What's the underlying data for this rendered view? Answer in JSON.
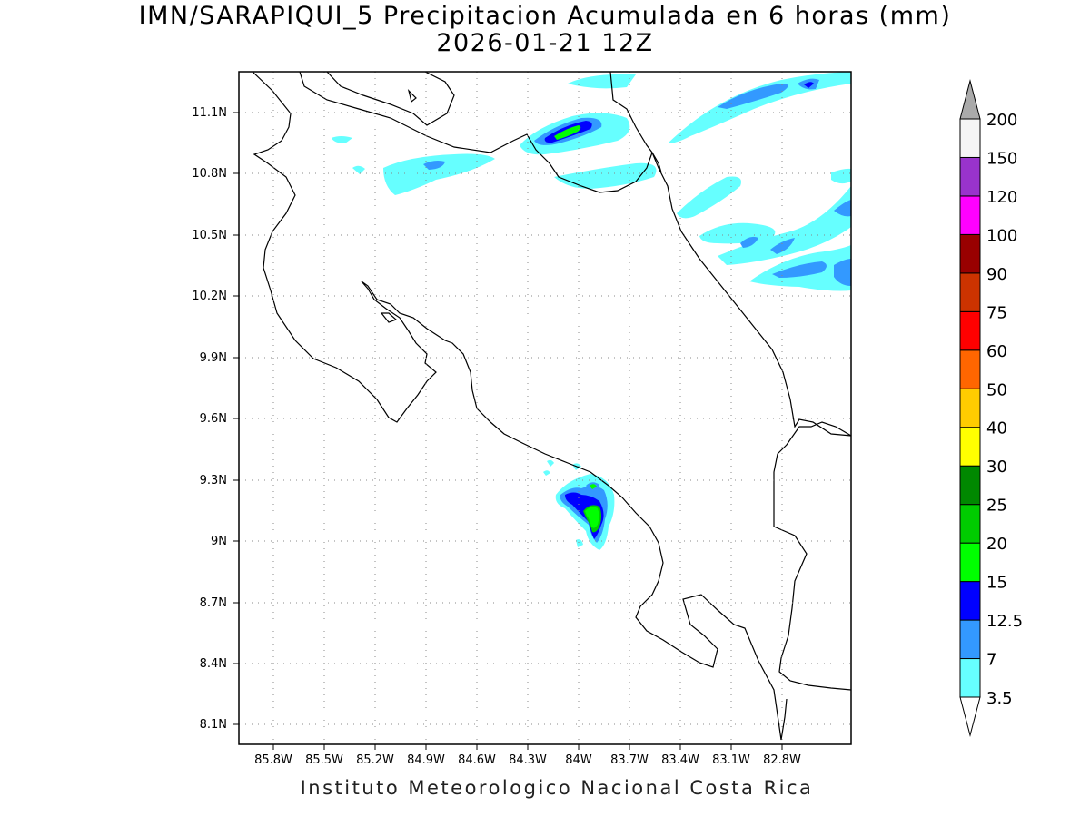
{
  "title": "IMN/SARAPIQUI_5 Precipitacion Acumulada en 6 horas (mm)",
  "subtitle": "2026-01-21 12Z",
  "credit": "Instituto Meteorologico Nacional Costa Rica",
  "map": {
    "lon_range": [
      -86.15,
      -82.45
    ],
    "lat_range": [
      8.0,
      11.3
    ],
    "lon_ticks": [
      "85.8W",
      "85.5W",
      "85.2W",
      "84.9W",
      "84.6W",
      "84.3W",
      "84W",
      "83.7W",
      "83.4W",
      "83.1W",
      "82.8W"
    ],
    "lat_ticks": [
      "8.1N",
      "8.4N",
      "8.7N",
      "9N",
      "9.3N",
      "9.6N",
      "9.9N",
      "10.2N",
      "10.5N",
      "10.8N",
      "11.1N"
    ],
    "grid": true
  },
  "colorbar": {
    "levels": [
      "3.5",
      "7",
      "12.5",
      "15",
      "20",
      "25",
      "30",
      "40",
      "50",
      "60",
      "75",
      "90",
      "100",
      "120",
      "150",
      "200"
    ],
    "colors": [
      "#ffffff",
      "#66ffff",
      "#3399ff",
      "#0000ff",
      "#00ff00",
      "#00cc00",
      "#008800",
      "#ffff00",
      "#ffcc00",
      "#ff6600",
      "#ff0000",
      "#cc3300",
      "#990000",
      "#ff00ff",
      "#9933cc",
      "#f5f5f5",
      "#aaaaaa"
    ]
  }
}
